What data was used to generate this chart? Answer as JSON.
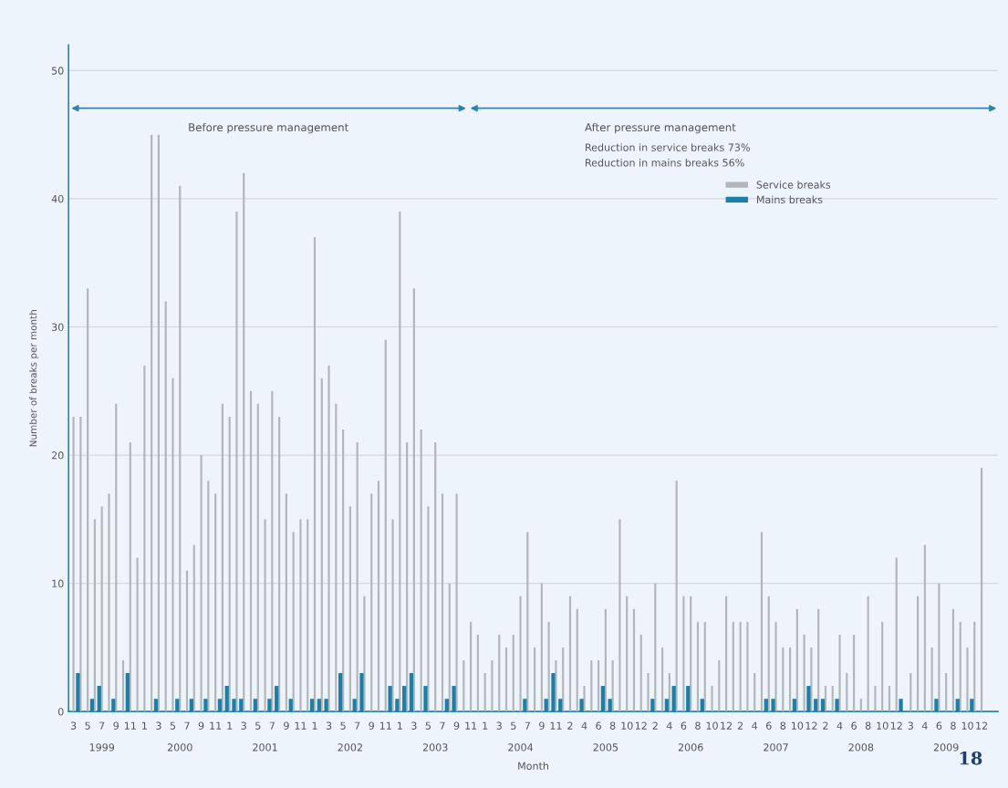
{
  "chart_data": {
    "type": "bar",
    "xlabel": "Month",
    "ylabel": "Number of breaks per month",
    "categories": [
      "3",
      null,
      "5",
      null,
      "7",
      null,
      "9",
      null,
      "11",
      null,
      "1",
      null,
      "3",
      null,
      "5",
      null,
      "7",
      null,
      "9",
      null,
      "11",
      null,
      "1",
      null,
      "3",
      null,
      "5",
      null,
      "7",
      null,
      "9",
      null,
      "11",
      null,
      "1",
      null,
      "3",
      null,
      "5",
      null,
      "7",
      null,
      "9",
      null,
      "11",
      null,
      "1",
      null,
      "3",
      null,
      "5",
      null,
      "7",
      null,
      "9",
      null,
      "11",
      null,
      "1",
      null,
      "3",
      null,
      "5",
      null,
      "7",
      null,
      "9",
      null,
      "11",
      null,
      "2",
      null,
      "4",
      null,
      "6",
      null,
      "8",
      null,
      "10",
      null,
      "12",
      null,
      "2",
      null,
      "4",
      null,
      "6",
      null,
      "8",
      null,
      "10",
      null,
      "12",
      null,
      "2",
      null,
      "4",
      null,
      "6",
      null,
      "8",
      null,
      "10",
      null,
      "12",
      null,
      "2",
      null,
      "4",
      null,
      "6",
      null,
      "8",
      null,
      "10",
      null,
      "12",
      null,
      "3",
      null,
      "4",
      null,
      "6",
      null,
      "8",
      null,
      "10",
      null,
      "12"
    ],
    "series": [
      {
        "name": "Service breaks",
        "color": "#b3b6b9",
        "values": [
          23,
          23,
          33,
          15,
          16,
          17,
          24,
          4,
          21,
          12,
          27,
          45,
          45,
          32,
          26,
          41,
          11,
          13,
          20,
          18,
          17,
          24,
          23,
          39,
          42,
          25,
          24,
          15,
          25,
          23,
          17,
          14,
          15,
          15,
          37,
          26,
          27,
          24,
          22,
          16,
          21,
          9,
          17,
          18,
          29,
          15,
          39,
          21,
          33,
          22,
          16,
          21,
          17,
          10,
          17,
          4,
          7,
          6,
          3,
          4,
          6,
          5,
          6,
          9,
          14,
          5,
          10,
          7,
          4,
          5,
          9,
          8,
          2,
          4,
          4,
          8,
          4,
          15,
          9,
          8,
          6,
          3,
          10,
          5,
          3,
          18,
          9,
          9,
          7,
          7,
          2,
          4,
          9,
          7,
          7,
          7,
          3,
          14,
          9,
          7,
          5,
          5,
          8,
          6,
          5,
          8,
          2,
          2,
          6,
          3,
          6,
          1,
          9,
          2,
          7,
          2,
          12,
          null,
          3,
          9,
          13,
          5,
          10,
          3,
          8,
          7,
          5,
          7,
          19
        ]
      },
      {
        "name": "Mains breaks",
        "color": "#1e7ea6",
        "values": [
          3,
          0,
          1,
          2,
          0,
          1,
          0,
          3,
          0,
          0,
          0,
          1,
          0,
          0,
          1,
          0,
          1,
          0,
          1,
          0,
          1,
          2,
          1,
          1,
          0,
          1,
          0,
          1,
          2,
          0,
          1,
          0,
          0,
          1,
          1,
          1,
          0,
          3,
          0,
          1,
          3,
          0,
          0,
          0,
          2,
          1,
          2,
          3,
          0,
          2,
          0,
          0,
          1,
          2,
          0,
          0,
          0,
          0,
          0,
          0,
          0,
          0,
          0,
          1,
          0,
          0,
          1,
          3,
          1,
          0,
          0,
          1,
          0,
          0,
          2,
          1,
          0,
          0,
          0,
          0,
          0,
          1,
          0,
          1,
          2,
          0,
          2,
          0,
          1,
          0,
          0,
          0,
          0,
          0,
          0,
          0,
          0,
          1,
          1,
          0,
          0,
          1,
          0,
          2,
          1,
          1,
          0,
          1,
          0,
          0,
          0,
          0,
          0,
          0,
          0,
          0,
          1,
          null,
          0,
          0,
          0,
          1,
          0,
          0,
          1,
          0,
          1,
          0,
          0
        ]
      }
    ],
    "ylim": [
      0,
      52
    ],
    "yticks": [
      0,
      10,
      20,
      30,
      40,
      50
    ],
    "grid": "y",
    "legend": "top right",
    "annotations": [
      "Before pressure management",
      "After pressure management",
      "Reduction in service breaks 73%",
      "Reduction in mains breaks 56%",
      "1999",
      "2000",
      "2001",
      "2002",
      "2003",
      "2004",
      "2005",
      "2006",
      "2007",
      "2008",
      "2009",
      "18"
    ]
  }
}
